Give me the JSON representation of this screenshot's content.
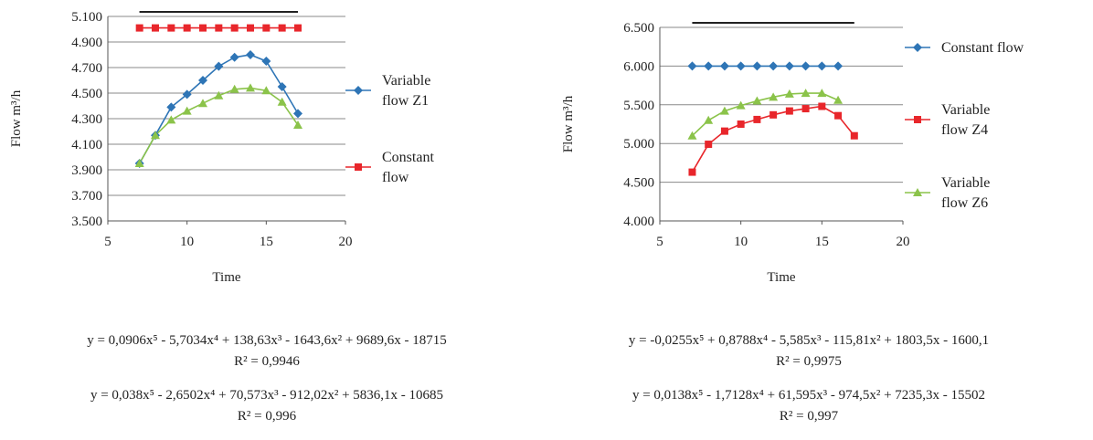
{
  "chart_data": [
    {
      "type": "scatter",
      "xlabel": "Time",
      "ylabel": "Flow m³/h",
      "xlim": [
        5,
        20
      ],
      "ylim": [
        3.5,
        5.1
      ],
      "x_ticks": [
        "5",
        "10",
        "15",
        "20"
      ],
      "y_ticks": [
        "3.500",
        "3.700",
        "3.900",
        "4.100",
        "4.300",
        "4.500",
        "4.700",
        "4.900",
        "5.100"
      ],
      "grid": "horizontal",
      "legend_position": "right",
      "series": [
        {
          "name": "Variable flow Z1",
          "legend_lines": [
            "Variable",
            "flow Z1"
          ],
          "color": "#2e75b6",
          "marker": "diamond",
          "x": [
            7,
            8,
            9,
            10,
            11,
            12,
            13,
            14,
            15,
            16,
            17
          ],
          "y": [
            3.95,
            4.17,
            4.39,
            4.49,
            4.6,
            4.71,
            4.78,
            4.8,
            4.75,
            4.55,
            4.34
          ]
        },
        {
          "name": "Constant flow",
          "legend_lines": [
            "Constant",
            "flow"
          ],
          "color": "#e8262b",
          "marker": "square",
          "x": [
            7,
            8,
            9,
            10,
            11,
            12,
            13,
            14,
            15,
            16,
            17
          ],
          "y": [
            5.01,
            5.01,
            5.01,
            5.01,
            5.01,
            5.01,
            5.01,
            5.01,
            5.01,
            5.01,
            5.01
          ]
        },
        {
          "name": "",
          "legend": false,
          "color": "#8bc34a",
          "marker": "triangle",
          "x": [
            7,
            8,
            9,
            10,
            11,
            12,
            13,
            14,
            15,
            16,
            17
          ],
          "y": [
            3.95,
            4.17,
            4.29,
            4.36,
            4.42,
            4.48,
            4.53,
            4.54,
            4.52,
            4.43,
            4.25
          ]
        }
      ],
      "trendlines": [
        {
          "color": "#222222",
          "coef": [
            -18715,
            9689.6,
            -1643.6,
            138.63,
            -5.7034,
            0.0906
          ],
          "x_range": [
            7,
            17
          ]
        },
        {
          "color": "#222222",
          "coef": [
            -10685,
            5836.1,
            -912.02,
            70.573,
            -2.6502,
            0.038
          ],
          "x_range": [
            7,
            17
          ]
        }
      ]
    },
    {
      "type": "scatter",
      "xlabel": "Time",
      "ylabel": "Flow m³/h",
      "xlim": [
        5,
        20
      ],
      "ylim": [
        4.0,
        6.5
      ],
      "x_ticks": [
        "5",
        "10",
        "15",
        "20"
      ],
      "y_ticks": [
        "4.000",
        "4.500",
        "5.000",
        "5.500",
        "6.000",
        "6.500"
      ],
      "grid": "horizontal",
      "legend_position": "right",
      "series": [
        {
          "name": "Constant flow",
          "legend_lines": [
            "Constant flow"
          ],
          "color": "#2e75b6",
          "marker": "diamond",
          "x": [
            7,
            8,
            9,
            10,
            11,
            12,
            13,
            14,
            15,
            16
          ],
          "y": [
            6.0,
            6.0,
            6.0,
            6.0,
            6.0,
            6.0,
            6.0,
            6.0,
            6.0,
            6.0
          ]
        },
        {
          "name": "Variable flow Z4",
          "legend_lines": [
            "Variable",
            "flow Z4"
          ],
          "color": "#e8262b",
          "marker": "square",
          "x": [
            7,
            8,
            9,
            10,
            11,
            12,
            13,
            14,
            15,
            16,
            17
          ],
          "y": [
            4.63,
            4.99,
            5.16,
            5.25,
            5.31,
            5.37,
            5.42,
            5.45,
            5.48,
            5.36,
            5.1
          ]
        },
        {
          "name": "Variable flow Z6",
          "legend_lines": [
            "Variable",
            "flow Z6"
          ],
          "color": "#8bc34a",
          "marker": "triangle",
          "x": [
            7,
            8,
            9,
            10,
            11,
            12,
            13,
            14,
            15,
            16
          ],
          "y": [
            5.1,
            5.3,
            5.42,
            5.49,
            5.55,
            5.6,
            5.64,
            5.65,
            5.65,
            5.56
          ]
        }
      ],
      "trendlines": [
        {
          "color": "#222222",
          "coef": [
            -1600.1,
            1803.5,
            -115.81,
            -5.585,
            0.8788,
            -0.0255
          ],
          "x_range": [
            7,
            16
          ]
        },
        {
          "color": "#222222",
          "coef": [
            -15502,
            7235.3,
            -974.5,
            61.595,
            -1.7128,
            0.0138
          ],
          "x_range": [
            7,
            17
          ]
        }
      ]
    }
  ],
  "equations": {
    "left": {
      "eq1": "y = 0,0906x⁵ - 5,7034x⁴ + 138,63x³ - 1643,6x² + 9689,6x - 18715",
      "r1": "R² = 0,9946",
      "eq2": "y = 0,038x⁵ - 2,6502x⁴ + 70,573x³ - 912,02x² + 5836,1x - 10685",
      "r2": "R² = 0,996"
    },
    "right": {
      "eq1": "y = -0,0255x⁵ + 0,8788x⁴ - 5,585x³ - 115,81x² + 1803,5x - 1600,1",
      "r1": "R² = 0,9975",
      "eq2": "y = 0,0138x⁵ - 1,7128x⁴ + 61,595x³ - 974,5x² + 7235,3x - 15502",
      "r2": "R² = 0,997"
    }
  }
}
